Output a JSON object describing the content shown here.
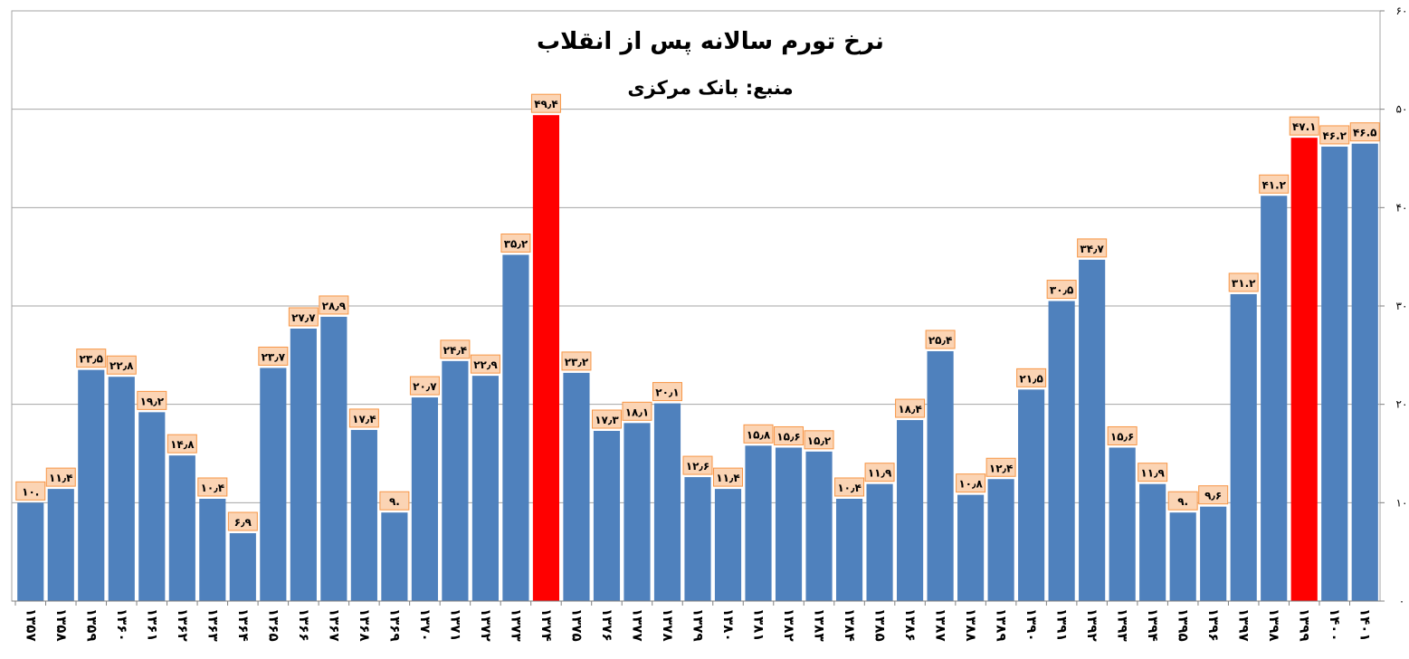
{
  "chart_data": {
    "type": "bar",
    "title": "نرخ تورم سالانه  پس از انقلاب",
    "subtitle": "منبع: بانک مرکزی",
    "xlabel": "",
    "ylabel": "",
    "ylim": [
      0,
      60
    ],
    "yticks": [
      0,
      10,
      20,
      30,
      40,
      50,
      60
    ],
    "ytick_labels": [
      "۰",
      "۱۰",
      "۲۰",
      "۳۰",
      "۴۰",
      "۵۰",
      "۶۰"
    ],
    "y_axis_side": "right",
    "grid": true,
    "legend": "none",
    "categories": [
      "۱۳۵۷",
      "۱۳۵۸",
      "۱۳۵۹",
      "۱۳۶۰",
      "۱۳۶۱",
      "۱۳۶۲",
      "۱۳۶۳",
      "۱۳۶۴",
      "۱۳۶۵",
      "۱۳۶۶",
      "۱۳۶۷",
      "۱۳۶۸",
      "۱۳۶۹",
      "۱۳۷۰",
      "۱۳۷۱",
      "۱۳۷۲",
      "۱۳۷۳",
      "۱۳۷۴",
      "۱۳۷۵",
      "۱۳۷۶",
      "۱۳۷۷",
      "۱۳۷۸",
      "۱۳۷۹",
      "۱۳۸۰",
      "۱۳۸۱",
      "۱۳۸۲",
      "۱۳۸۳",
      "۱۳۸۴",
      "۱۳۸۵",
      "۱۳۸۶",
      "۱۳۸۷",
      "۱۳۸۸",
      "۱۳۸۹",
      "۱۳۹۰",
      "۱۳۹۱",
      "۱۳۹۲",
      "۱۳۹۳",
      "۱۳۹۴",
      "۱۳۹۵",
      "۱۳۹۶",
      "۱۳۹۷",
      "۱۳۹۸",
      "۱۳۹۹",
      "۱۴۰۰",
      "۱۴۰۱"
    ],
    "values": [
      10.0,
      11.4,
      23.5,
      22.8,
      19.2,
      14.8,
      10.4,
      6.9,
      23.7,
      27.7,
      28.9,
      17.4,
      9.0,
      20.7,
      24.4,
      22.9,
      35.2,
      49.4,
      23.2,
      17.3,
      18.1,
      20.1,
      12.6,
      11.4,
      15.8,
      15.6,
      15.2,
      10.4,
      11.9,
      18.4,
      25.4,
      10.8,
      12.4,
      21.5,
      30.5,
      34.7,
      15.6,
      11.9,
      9.0,
      9.6,
      31.2,
      41.2,
      47.1,
      46.2,
      46.5
    ],
    "data_labels": [
      "۱۰.",
      "۱۱٫۴",
      "۲۳٫۵",
      "۲۲٫۸",
      "۱۹٫۲",
      "۱۴٫۸",
      "۱۰٫۴",
      "۶٫۹",
      "۲۳٫۷",
      "۲۷٫۷",
      "۲۸٫۹",
      "۱۷٫۴",
      "۹.",
      "۲۰٫۷",
      "۲۴٫۴",
      "۲۲٫۹",
      "۳۵٫۲",
      "۴۹٫۴",
      "۲۳٫۲",
      "۱۷٫۳",
      "۱۸٫۱",
      "۲۰٫۱",
      "۱۲٫۶",
      "۱۱٫۴",
      "۱۵٫۸",
      "۱۵٫۶",
      "۱۵٫۲",
      "۱۰٫۴",
      "۱۱٫۹",
      "۱۸٫۴",
      "۲۵٫۴",
      "۱۰٫۸",
      "۱۲٫۴",
      "۲۱٫۵",
      "۳۰٫۵",
      "۳۴٫۷",
      "۱۵٫۶",
      "۱۱٫۹",
      "۹.",
      "۹٫۶",
      "۳۱.۲",
      "۴۱.۲",
      "۴۷.۱",
      "۴۶.۲",
      "۴۶.۵"
    ],
    "highlighted_categories": [
      "۱۳۷۴",
      "۱۳۹۹"
    ],
    "colors": {
      "bar": "#4f81bd",
      "bar_highlight": "#ff0000",
      "label_fill": "#fbd4b4",
      "label_stroke": "#f79646",
      "grid": "#a6a6a6",
      "axis": "#808080",
      "text": "#000000"
    }
  }
}
